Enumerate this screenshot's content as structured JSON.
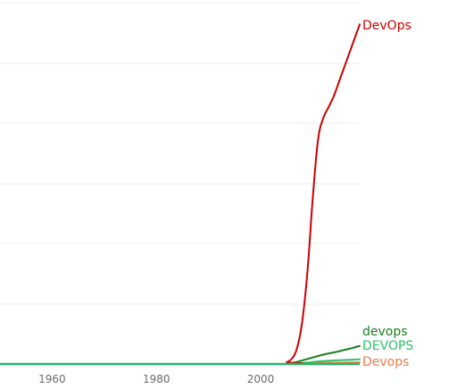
{
  "chart_data": {
    "type": "line",
    "title": "",
    "xlabel": "",
    "ylabel": "",
    "xlim": [
      1950,
      2019
    ],
    "ylim": [
      0,
      100
    ],
    "grid": true,
    "legend": "inline-right",
    "x_ticks": [
      1960,
      1980,
      2000
    ],
    "series": [
      {
        "name": "DevOps",
        "color": "#cc0000",
        "x": [
          1950,
          2004,
          2005,
          2006,
          2007,
          2008,
          2009,
          2010,
          2011,
          2012,
          2013,
          2014,
          2015,
          2016,
          2017,
          2018,
          2019
        ],
        "y": [
          0,
          0,
          0.5,
          1.5,
          4.5,
          12,
          26,
          46,
          62,
          68,
          71,
          74,
          78,
          82,
          86,
          90,
          94
        ]
      },
      {
        "name": "devops",
        "color": "#1a7f1a",
        "x": [
          1950,
          2005,
          2006,
          2007,
          2008,
          2009,
          2010,
          2011,
          2012,
          2013,
          2014,
          2015,
          2016,
          2017,
          2018,
          2019
        ],
        "y": [
          0,
          0,
          0.3,
          0.6,
          1.0,
          1.4,
          1.8,
          2.2,
          2.6,
          2.9,
          3.2,
          3.5,
          3.9,
          4.2,
          4.6,
          5.0
        ]
      },
      {
        "name": "DEVOPS",
        "color": "#27c46b",
        "x": [
          1950,
          2005,
          2007,
          2009,
          2011,
          2013,
          2015,
          2017,
          2019
        ],
        "y": [
          0,
          0,
          0.15,
          0.4,
          0.7,
          0.9,
          1.05,
          1.15,
          1.3
        ]
      },
      {
        "name": "Devops",
        "color": "#f07a4a",
        "x": [
          1950,
          2006,
          2008,
          2010,
          2012,
          2014,
          2016,
          2019
        ],
        "y": [
          0,
          0,
          0.1,
          0.2,
          0.3,
          0.35,
          0.4,
          0.45
        ]
      }
    ]
  },
  "colors": {
    "grid": "#ececec",
    "baseline": "#2ab56a",
    "tick_text": "#6b6b6b"
  }
}
